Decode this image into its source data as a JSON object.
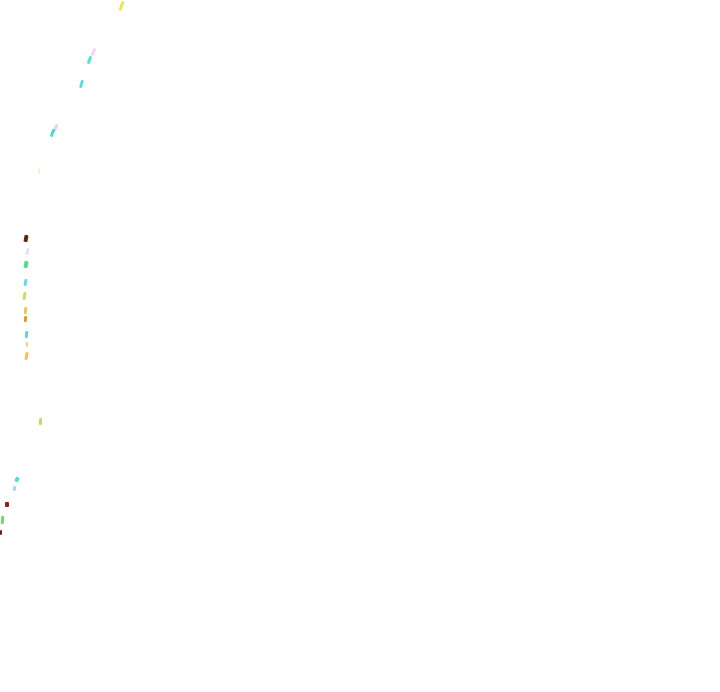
{
  "background_color": "#ffffff",
  "specks": [
    {
      "color": "#e6e65c"
    },
    {
      "color": "#f3d4f5"
    },
    {
      "color": "#5fe0c8"
    },
    {
      "color": "#66d9d6"
    },
    {
      "color": "#f0c9ef"
    },
    {
      "color": "#4fd6d2"
    },
    {
      "color": "#f4f4cc"
    },
    {
      "color": "#5a2a10"
    },
    {
      "color": "#e9e0f0"
    },
    {
      "color": "#59d88a"
    },
    {
      "color": "#73d2e6"
    },
    {
      "color": "#c8dd6a"
    },
    {
      "color": "#e8c16a"
    },
    {
      "color": "#d99a3a"
    },
    {
      "color": "#62d4df"
    },
    {
      "color": "#f2d277"
    },
    {
      "color": "#efc25a"
    },
    {
      "color": "#b8e06a"
    },
    {
      "color": "#59dcd6"
    },
    {
      "color": "#a5d8f2"
    },
    {
      "color": "#8a1f1f"
    },
    {
      "color": "#70d66c"
    },
    {
      "color": "#7a1a1a"
    }
  ]
}
